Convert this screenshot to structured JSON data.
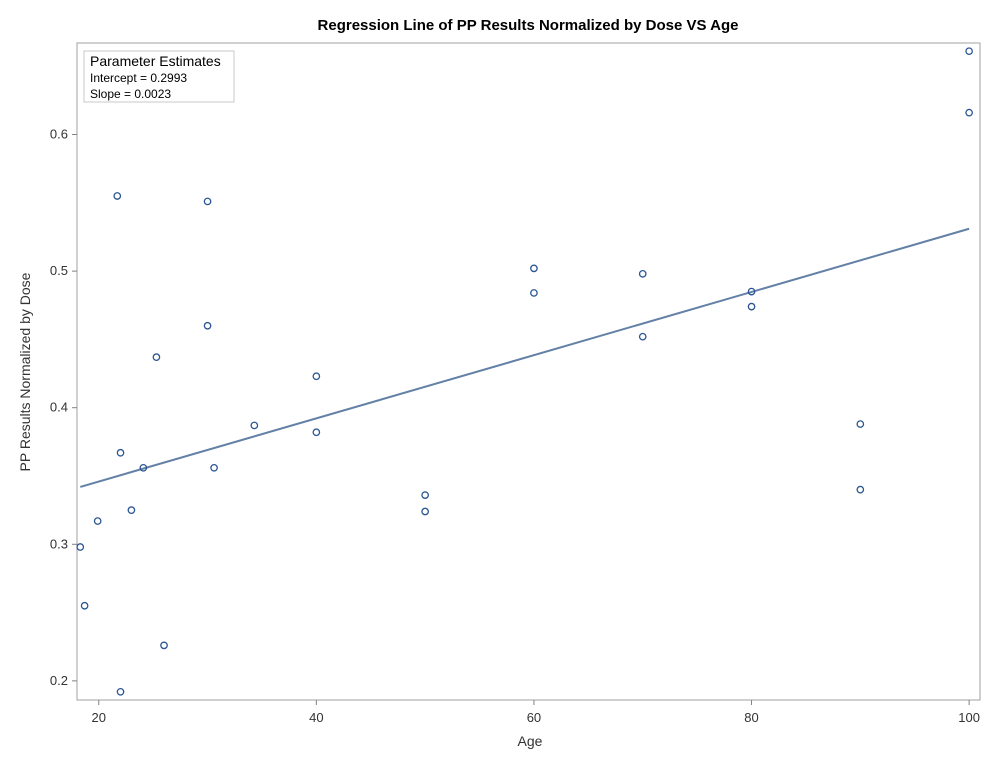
{
  "chart_data": {
    "type": "scatter",
    "title": "Regression Line of PP Results Normalized by Dose VS Age",
    "xlabel": "Age",
    "ylabel": "PP Results Normalized by Dose",
    "xlim": [
      18,
      101
    ],
    "ylim": [
      0.186,
      0.667
    ],
    "xticks": [
      20,
      40,
      60,
      80,
      100
    ],
    "yticks": [
      0.2,
      0.3,
      0.4,
      0.5,
      0.6
    ],
    "grid": false,
    "points": [
      {
        "x": 18.3,
        "y": 0.298
      },
      {
        "x": 18.7,
        "y": 0.255
      },
      {
        "x": 19.9,
        "y": 0.317
      },
      {
        "x": 21.7,
        "y": 0.555
      },
      {
        "x": 22.0,
        "y": 0.367
      },
      {
        "x": 22.0,
        "y": 0.192
      },
      {
        "x": 23.0,
        "y": 0.325
      },
      {
        "x": 24.1,
        "y": 0.356
      },
      {
        "x": 25.3,
        "y": 0.437
      },
      {
        "x": 26.0,
        "y": 0.226
      },
      {
        "x": 30.0,
        "y": 0.551
      },
      {
        "x": 30.0,
        "y": 0.46
      },
      {
        "x": 30.6,
        "y": 0.356
      },
      {
        "x": 34.3,
        "y": 0.387
      },
      {
        "x": 40.0,
        "y": 0.423
      },
      {
        "x": 40.0,
        "y": 0.382
      },
      {
        "x": 50.0,
        "y": 0.336
      },
      {
        "x": 50.0,
        "y": 0.324
      },
      {
        "x": 60.0,
        "y": 0.502
      },
      {
        "x": 60.0,
        "y": 0.484
      },
      {
        "x": 70.0,
        "y": 0.498
      },
      {
        "x": 70.0,
        "y": 0.452
      },
      {
        "x": 80.0,
        "y": 0.485
      },
      {
        "x": 80.0,
        "y": 0.474
      },
      {
        "x": 90.0,
        "y": 0.388
      },
      {
        "x": 90.0,
        "y": 0.34
      },
      {
        "x": 100.0,
        "y": 0.661
      },
      {
        "x": 100.0,
        "y": 0.616
      }
    ],
    "regression_line": {
      "x": [
        18.3,
        100.0
      ],
      "y": [
        0.342,
        0.531
      ]
    },
    "parameter_estimates": {
      "title": "Parameter Estimates",
      "intercept_text": "Intercept = 0.2993",
      "slope_text": "Slope = 0.0023"
    },
    "colors": {
      "marker": "#2a5592",
      "line": "#6380a6",
      "frame": "#a0a0a0"
    }
  }
}
